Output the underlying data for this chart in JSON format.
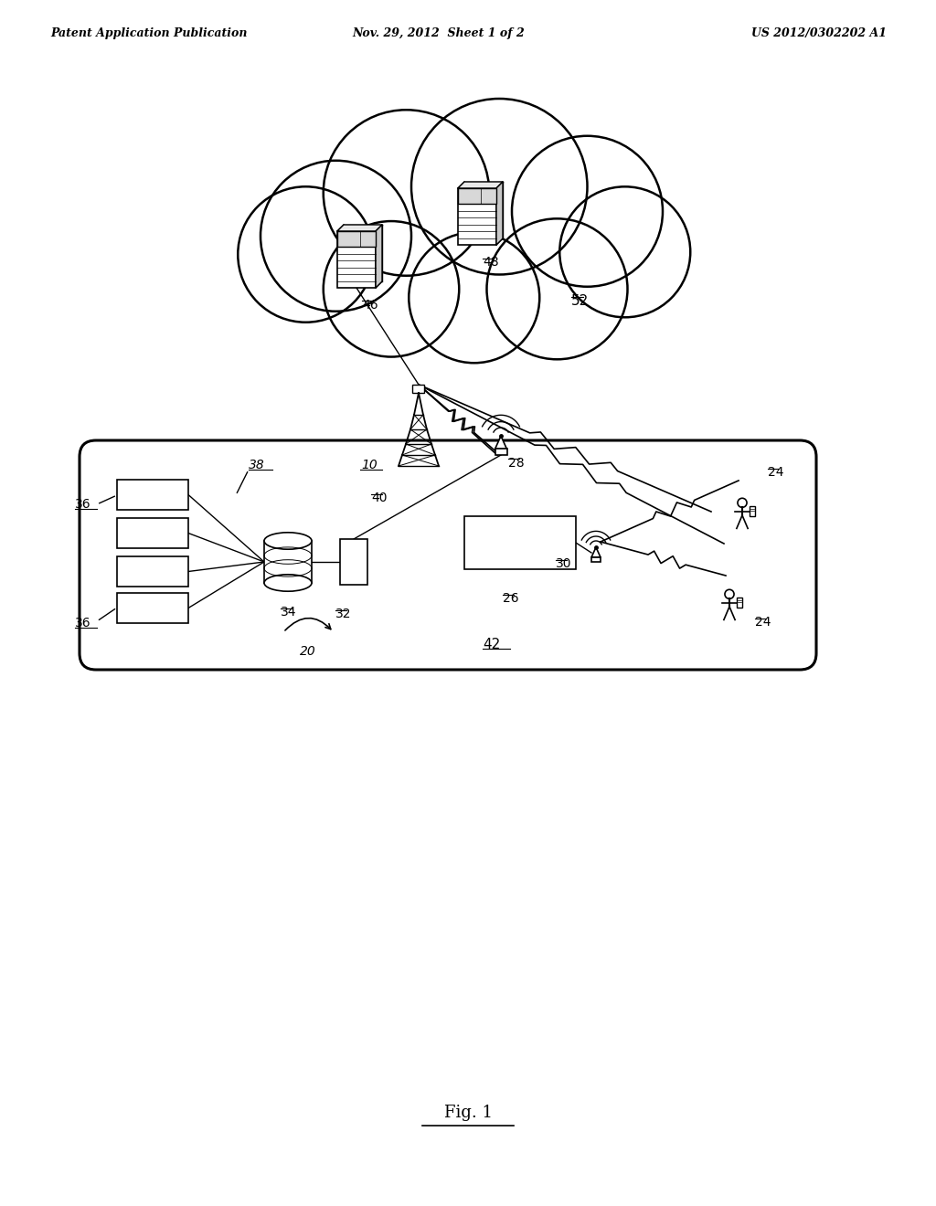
{
  "bg_color": "#ffffff",
  "header_left": "Patent Application Publication",
  "header_center": "Nov. 29, 2012  Sheet 1 of 2",
  "header_right": "US 2012/0302202 A1",
  "figure_label": "Fig. 1",
  "cloud_label": "52",
  "server1_label": "46",
  "server2_label": "48",
  "tower_label": "40",
  "vehicle_box_label": "10",
  "wifi_ap_label": "28",
  "inner_wifi_label": "30",
  "gateway_label": "32",
  "db_label": "34",
  "vehicle_box_label2": "42",
  "ecu_label": "36",
  "infotainment_label": "38",
  "cell_user1_label": "24",
  "cell_user2_label": "24",
  "wifi_module_label": "26",
  "arrow20_label": "20"
}
